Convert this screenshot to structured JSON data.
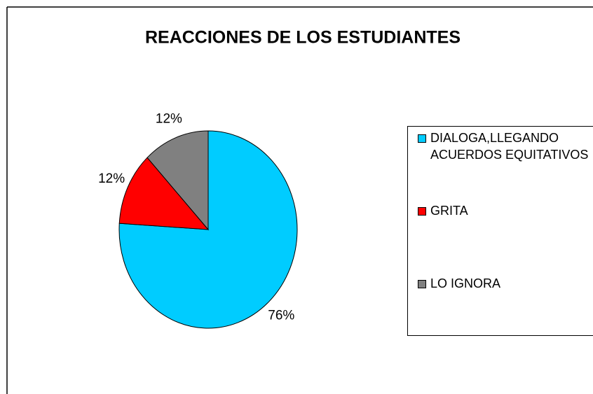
{
  "chart_data": {
    "type": "pie",
    "title": "REACCIONES DE LOS ESTUDIANTES",
    "categories": [
      "DIALOGA,LLEGANDO ACUERDOS EQUITATIVOS",
      "GRITA",
      "LO IGNORA"
    ],
    "values": [
      76,
      12,
      12
    ],
    "value_labels": [
      "76%",
      "12%",
      "12%"
    ],
    "colors": [
      "#00ccff",
      "#ff0000",
      "#808080"
    ],
    "legend": "right"
  }
}
